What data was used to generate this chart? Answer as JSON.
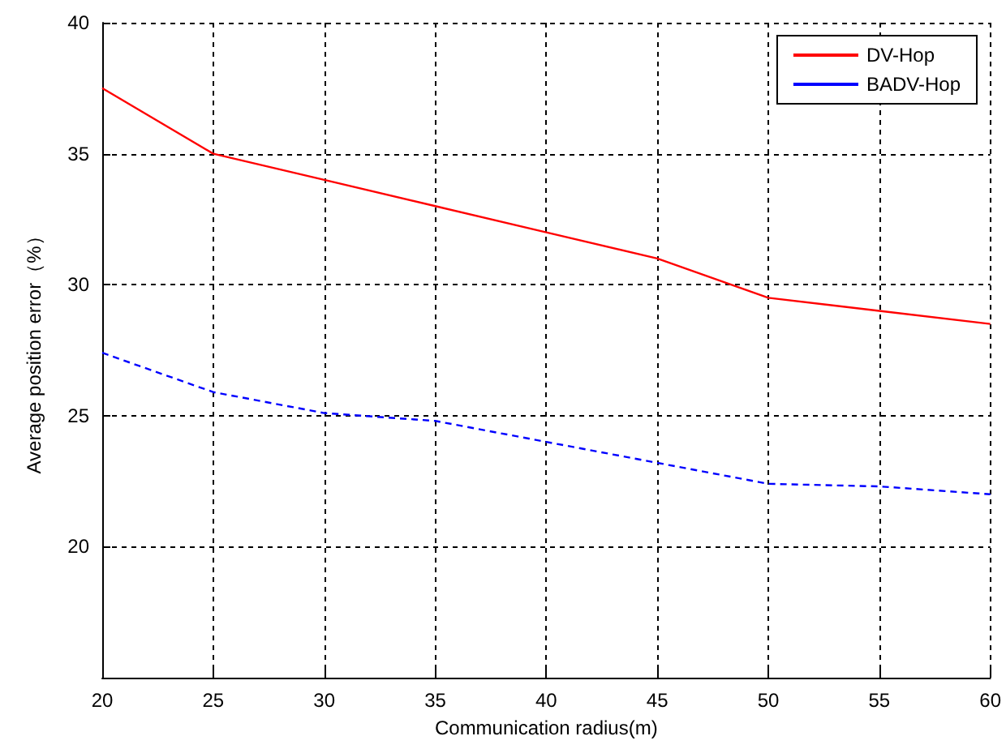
{
  "chart_data": {
    "type": "line",
    "xlabel": "Communication radius(m)",
    "ylabel": "Average position error（%）",
    "x": [
      20,
      25,
      30,
      35,
      40,
      45,
      50,
      55,
      60
    ],
    "series": [
      {
        "name": "DV-Hop",
        "color": "#ff0000",
        "line_style": "solid",
        "values": [
          37.5,
          35,
          34,
          33,
          32,
          31,
          29.5,
          29,
          28.5
        ]
      },
      {
        "name": "BADV-Hop",
        "color": "#0000ff",
        "line_style": "dashed",
        "values": [
          27.4,
          25.9,
          25.1,
          24.8,
          24.0,
          23.2,
          22.4,
          22.3,
          22.0
        ]
      }
    ],
    "xlim": [
      20,
      60
    ],
    "xticks": [
      20,
      25,
      30,
      35,
      40,
      45,
      50,
      55,
      60
    ],
    "ylim": [
      15,
      40
    ],
    "yticks": [
      20,
      25,
      30,
      35,
      40
    ],
    "grid": true,
    "legend": "top right",
    "marker": "none"
  }
}
